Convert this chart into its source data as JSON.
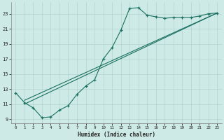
{
  "xlabel": "Humidex (Indice chaleur)",
  "bg_color": "#ceeae6",
  "grid_color": "#b0d4d0",
  "line_color": "#1a7060",
  "xlim": [
    -0.5,
    23.5
  ],
  "ylim": [
    8.5,
    24.5
  ],
  "yticks": [
    9,
    11,
    13,
    15,
    17,
    19,
    21,
    23
  ],
  "xticks": [
    0,
    1,
    2,
    3,
    4,
    5,
    6,
    7,
    8,
    9,
    10,
    11,
    12,
    13,
    14,
    15,
    16,
    17,
    18,
    19,
    20,
    21,
    22,
    23
  ],
  "main_x": [
    0,
    1,
    2,
    3,
    4,
    5,
    6,
    7,
    8,
    9,
    10,
    11,
    12,
    13,
    14,
    15,
    16,
    17,
    18,
    19,
    20,
    21,
    22,
    23
  ],
  "main_y": [
    12.5,
    11.2,
    10.5,
    9.2,
    9.3,
    10.2,
    10.8,
    12.3,
    13.4,
    14.2,
    17.0,
    18.5,
    20.8,
    23.7,
    23.8,
    22.8,
    22.6,
    22.4,
    22.5,
    22.5,
    22.5,
    22.7,
    23.0,
    23.1
  ],
  "line1_x": [
    1,
    23
  ],
  "line1_y": [
    11.0,
    23.1
  ],
  "line2_x": [
    1,
    23
  ],
  "line2_y": [
    11.5,
    23.1
  ]
}
